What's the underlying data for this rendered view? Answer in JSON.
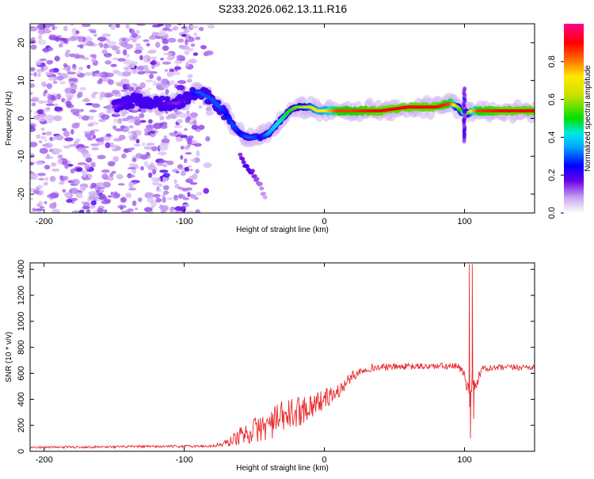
{
  "page": {
    "title": "S233.2026.062.13.11.R16"
  },
  "chart_data": [
    {
      "type": "heatmap",
      "name": "spectrogram",
      "xlabel": "Height of straight line (km)",
      "ylabel": "Frequency (Hz)",
      "xlim": [
        -210,
        150
      ],
      "ylim": [
        -25,
        25
      ],
      "xticks": [
        -200,
        -100,
        0,
        100
      ],
      "yticks": [
        -20,
        -10,
        0,
        10,
        20
      ],
      "colorbar": {
        "label": "Normalized spectral amplitude",
        "ticks": [
          "0.0",
          "0.2",
          "0.4",
          "0.6",
          "0.8"
        ],
        "range": [
          0,
          1
        ]
      },
      "ridge": {
        "x": [
          -150,
          -135,
          -120,
          -105,
          -95,
          -90,
          -80,
          -75,
          -70,
          -65,
          -60,
          -55,
          -50,
          -45,
          -40,
          -35,
          -30,
          -25,
          -20,
          -15,
          -10,
          -5,
          0,
          10,
          20,
          40,
          60,
          80,
          90,
          95,
          100,
          105,
          110,
          130,
          150
        ],
        "freq": [
          3,
          5,
          4,
          4,
          6,
          7,
          5,
          3,
          1,
          -2,
          -4,
          -5,
          -5,
          -5,
          -4,
          -2,
          0,
          2,
          3,
          3,
          3,
          2,
          2,
          2,
          2,
          2,
          3,
          3,
          4,
          3,
          1,
          2,
          2,
          2,
          2
        ],
        "amp": [
          0.15,
          0.2,
          0.2,
          0.15,
          0.2,
          0.3,
          0.3,
          0.3,
          0.25,
          0.3,
          0.25,
          0.3,
          0.3,
          0.25,
          0.35,
          0.4,
          0.45,
          0.5,
          0.55,
          0.6,
          0.65,
          0.7,
          0.7,
          0.85,
          0.85,
          0.9,
          0.9,
          0.9,
          0.85,
          0.6,
          0.4,
          0.7,
          0.85,
          0.9,
          0.9
        ]
      },
      "branch": {
        "x": [
          -60,
          -55,
          -50,
          -45,
          -42
        ],
        "freq": [
          -10,
          -13,
          -15,
          -18,
          -22
        ],
        "amp": [
          0.15,
          0.2,
          0.15,
          0.1,
          0.08
        ]
      }
    },
    {
      "type": "line",
      "name": "snr",
      "xlabel": "Height of straight line (km)",
      "ylabel": "SNR (10 * v/v)",
      "xlim": [
        -210,
        150
      ],
      "ylim": [
        0,
        1450
      ],
      "xticks": [
        -200,
        -100,
        0,
        100
      ],
      "yticks": [
        0,
        200,
        400,
        600,
        800,
        1000,
        1200,
        1400
      ],
      "color": "#e8292b",
      "envelope": {
        "x": [
          -210,
          -80,
          -70,
          -60,
          -50,
          -40,
          -30,
          -20,
          -10,
          0,
          10,
          20,
          30,
          50,
          80,
          95,
          100,
          102,
          104,
          106,
          108,
          112,
          120,
          150
        ],
        "mean": [
          30,
          40,
          60,
          120,
          160,
          200,
          260,
          300,
          350,
          400,
          460,
          580,
          640,
          650,
          655,
          650,
          600,
          500,
          400,
          600,
          500,
          630,
          640,
          650
        ],
        "noise": [
          8,
          10,
          30,
          70,
          100,
          120,
          130,
          120,
          100,
          80,
          60,
          40,
          30,
          25,
          25,
          30,
          40,
          80,
          80,
          80,
          60,
          30,
          25,
          25
        ]
      },
      "spikes": [
        {
          "x": 103.5,
          "y": 1440
        },
        {
          "x": 104.2,
          "y": 100
        },
        {
          "x": 105.5,
          "y": 1440
        },
        {
          "x": 106.5,
          "y": 250
        }
      ]
    }
  ]
}
